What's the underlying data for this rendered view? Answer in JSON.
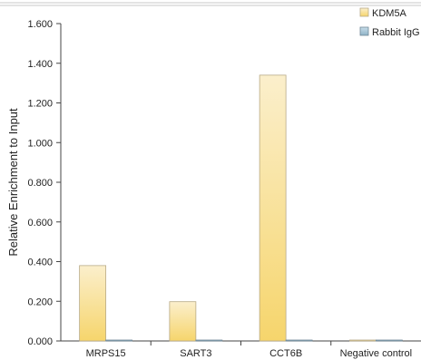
{
  "chart_data": {
    "type": "bar",
    "title": "",
    "xlabel": "",
    "ylabel": "Relative Enrichment to Input",
    "categories": [
      "MRPS15",
      "SART3",
      "CCT6B",
      "Negative control"
    ],
    "series": [
      {
        "name": "KDM5A",
        "values": [
          0.38,
          0.198,
          1.34,
          0.003
        ],
        "color": "#f6d56c"
      },
      {
        "name": "Rabbit IgG",
        "values": [
          0.003,
          0.003,
          0.003,
          0.003
        ],
        "color": "#8fb3c7"
      }
    ],
    "ylim": [
      0,
      1.6
    ],
    "yticks": [
      0,
      0.2,
      0.4,
      0.6,
      0.8,
      1.0,
      1.2,
      1.4,
      1.6
    ],
    "ytick_labels": [
      "0.000",
      "0.200",
      "0.400",
      "0.600",
      "0.800",
      "1.000",
      "1.200",
      "1.400",
      "1.600"
    ],
    "grid": false,
    "legend_position": "top-right"
  }
}
